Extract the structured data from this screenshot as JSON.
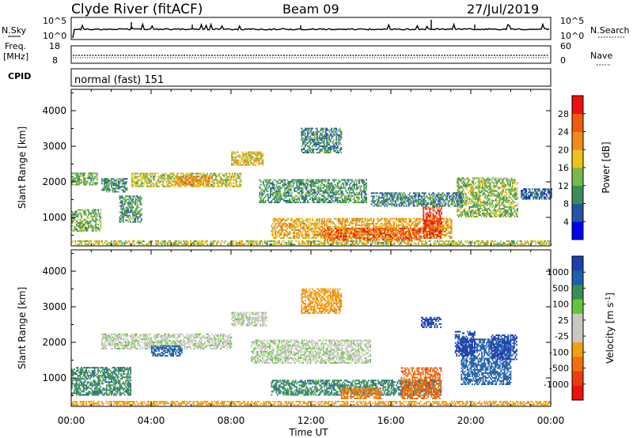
{
  "header": {
    "station": "Clyde River (fitACF)",
    "beam": "Beam 09",
    "date": "27/Jul/2019"
  },
  "noise_panel": {
    "left_label": "N.Sky",
    "left_ticks": [
      "10^5",
      "10^0"
    ],
    "right_ticks": [
      "10^5",
      "10^0"
    ],
    "right_label": "N.Search"
  },
  "freq_panel": {
    "left_label_1": "Freq.",
    "left_label_2": "[MHz]",
    "left_ticks": [
      "18",
      "8"
    ],
    "right_ticks": [
      "60",
      "0"
    ],
    "right_label": "Nave"
  },
  "cpid_panel": {
    "label": "CPID",
    "text": "normal (fast) 151"
  },
  "colors": {
    "power_scale": [
      "#0000ee",
      "#2255a8",
      "#3a8c58",
      "#78b84a",
      "#eec21a",
      "#f08a1a",
      "#ee5a10",
      "#ee1010"
    ],
    "velocity_scale": [
      "#1f3fb0",
      "#1f5fa8",
      "#3a8c58",
      "#66c33a",
      "#c8c8c0",
      "#c8c8c0",
      "#f0a010",
      "#f07010",
      "#ee3a10",
      "#ee1010"
    ],
    "velocity_gray": "#c8c8c0"
  },
  "chart_data": [
    {
      "type": "heatmap",
      "name": "power",
      "title": "",
      "xlabel": "",
      "ylabel": "Slant Range [km]",
      "yticks": [
        "1000",
        "2000",
        "3000",
        "4000"
      ],
      "ylim": [
        200,
        4600
      ],
      "xlim": [
        0,
        24
      ],
      "colorbar": {
        "label": "Power [dB]",
        "ticks": [
          "4",
          "8",
          "12",
          "16",
          "20",
          "24",
          "28"
        ],
        "range": [
          0,
          32
        ]
      },
      "regions": [
        {
          "t": [
            0.0,
            24.0
          ],
          "r": [
            220,
            320
          ],
          "v": 16
        },
        {
          "t": [
            0.0,
            1.3
          ],
          "r": [
            1900,
            2250
          ],
          "v": 12
        },
        {
          "t": [
            0.0,
            1.5
          ],
          "r": [
            600,
            1200
          ],
          "v": 12
        },
        {
          "t": [
            1.5,
            2.8
          ],
          "r": [
            1700,
            2100
          ],
          "v": 10
        },
        {
          "t": [
            2.4,
            3.5
          ],
          "r": [
            850,
            1600
          ],
          "v": 11
        },
        {
          "t": [
            3.0,
            8.5
          ],
          "r": [
            1850,
            2250
          ],
          "v": 16
        },
        {
          "t": [
            5.2,
            7.0
          ],
          "r": [
            1900,
            2150
          ],
          "v": 22
        },
        {
          "t": [
            8.0,
            9.6
          ],
          "r": [
            2450,
            2850
          ],
          "v": 18
        },
        {
          "t": [
            9.4,
            14.8
          ],
          "r": [
            1400,
            2050
          ],
          "v": 11
        },
        {
          "t": [
            10.0,
            19.0
          ],
          "r": [
            400,
            950
          ],
          "v": 20
        },
        {
          "t": [
            12.5,
            17.5
          ],
          "r": [
            350,
            700
          ],
          "v": 26
        },
        {
          "t": [
            17.6,
            18.5
          ],
          "r": [
            400,
            1300
          ],
          "v": 28
        },
        {
          "t": [
            11.5,
            13.5
          ],
          "r": [
            2800,
            3500
          ],
          "v": 9
        },
        {
          "t": [
            19.3,
            22.3
          ],
          "r": [
            1000,
            2100
          ],
          "v": 14
        },
        {
          "t": [
            22.5,
            24.0
          ],
          "r": [
            1500,
            1800
          ],
          "v": 7
        },
        {
          "t": [
            15.0,
            19.5
          ],
          "r": [
            1300,
            1700
          ],
          "v": 9
        }
      ]
    },
    {
      "type": "heatmap",
      "name": "velocity",
      "title": "",
      "xlabel": "Time UT",
      "ylabel": "Slant Range [km]",
      "xticks": [
        "00:00",
        "04:00",
        "08:00",
        "12:00",
        "16:00",
        "20:00",
        "00:00"
      ],
      "yticks": [
        "1000",
        "2000",
        "3000",
        "4000"
      ],
      "ylim": [
        200,
        4600
      ],
      "xlim": [
        0,
        24
      ],
      "colorbar": {
        "label": "Velocity [m s^-1]",
        "ticks": [
          "1000",
          "500",
          "100",
          "25",
          "-25",
          "-100",
          "-500",
          "-1000"
        ]
      },
      "regions": [
        {
          "t": [
            0.0,
            24.0
          ],
          "r": [
            220,
            320
          ],
          "v": -50
        },
        {
          "t": [
            0.0,
            3.0
          ],
          "r": [
            500,
            1300
          ],
          "v": 80
        },
        {
          "t": [
            1.5,
            8.0
          ],
          "r": [
            1800,
            2250
          ],
          "v": 10
        },
        {
          "t": [
            4.0,
            5.5
          ],
          "r": [
            1600,
            1900
          ],
          "v": 150
        },
        {
          "t": [
            8.0,
            9.8
          ],
          "r": [
            2450,
            2850
          ],
          "v": 5
        },
        {
          "t": [
            9.0,
            15.0
          ],
          "r": [
            1400,
            2050
          ],
          "v": 10
        },
        {
          "t": [
            10.0,
            18.5
          ],
          "r": [
            500,
            950
          ],
          "v": 80
        },
        {
          "t": [
            13.5,
            15.5
          ],
          "r": [
            400,
            700
          ],
          "v": -120
        },
        {
          "t": [
            16.5,
            18.5
          ],
          "r": [
            400,
            1300
          ],
          "v": -400
        },
        {
          "t": [
            19.5,
            22.0
          ],
          "r": [
            800,
            2100
          ],
          "v": 200
        },
        {
          "t": [
            19.2,
            20.2
          ],
          "r": [
            1600,
            2300
          ],
          "v": 700
        },
        {
          "t": [
            21.0,
            22.3
          ],
          "r": [
            1500,
            2200
          ],
          "v": 600
        },
        {
          "t": [
            17.5,
            18.5
          ],
          "r": [
            2400,
            2700
          ],
          "v": 800
        },
        {
          "t": [
            11.5,
            13.5
          ],
          "r": [
            2800,
            3500
          ],
          "v": -80
        }
      ]
    }
  ]
}
